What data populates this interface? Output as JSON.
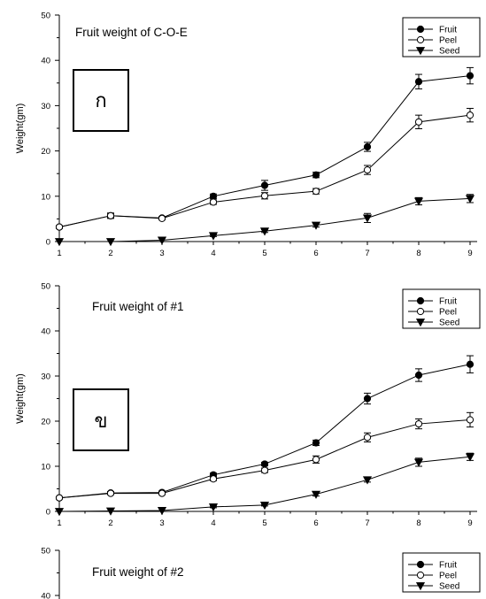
{
  "chart_data": [
    {
      "type": "line",
      "title": "Fruit weight of C-O-E",
      "box_label": "ก",
      "ylabel": "Weight(gm)",
      "xlabel": "",
      "x": [
        1,
        2,
        3,
        4,
        5,
        6,
        7,
        8,
        9
      ],
      "x_ticks": [
        "1",
        "2",
        "3",
        "4",
        "5",
        "6",
        "7",
        "8",
        "9"
      ],
      "ylim": [
        0,
        50
      ],
      "y_ticks": [
        "0",
        "10",
        "20",
        "30",
        "40",
        "50"
      ],
      "legend_position": "top-right",
      "series": [
        {
          "name": "Fruit",
          "marker": "filled-circle",
          "values": [
            3.2,
            5.7,
            5.2,
            10.0,
            12.4,
            14.7,
            20.9,
            35.3,
            36.6
          ],
          "errors": [
            0.3,
            0.4,
            0.3,
            0.5,
            1.1,
            0.6,
            1.0,
            1.6,
            1.8
          ]
        },
        {
          "name": "Peel",
          "marker": "open-circle",
          "values": [
            3.2,
            5.7,
            5.1,
            8.7,
            10.1,
            11.1,
            15.8,
            26.4,
            27.9
          ],
          "errors": [
            0.3,
            0.6,
            0.3,
            0.5,
            0.7,
            0.6,
            1.0,
            1.5,
            1.5
          ]
        },
        {
          "name": "Seed",
          "marker": "filled-triangle-down",
          "values": [
            0.0,
            0.0,
            0.3,
            1.3,
            2.3,
            3.6,
            5.2,
            8.9,
            9.5
          ],
          "errors": [
            0.05,
            0.05,
            0.1,
            0.2,
            0.3,
            0.4,
            1.0,
            0.8,
            0.9
          ]
        }
      ]
    },
    {
      "type": "line",
      "title": "Fruit weight of #1",
      "box_label": "ข",
      "ylabel": "Weight(gm)",
      "xlabel": "",
      "x": [
        1,
        2,
        3,
        4,
        5,
        6,
        7,
        8,
        9
      ],
      "x_ticks": [
        "1",
        "2",
        "3",
        "4",
        "5",
        "6",
        "7",
        "8",
        "9"
      ],
      "ylim": [
        0,
        50
      ],
      "y_ticks": [
        "0",
        "10",
        "20",
        "30",
        "40",
        "50"
      ],
      "legend_position": "top-right",
      "series": [
        {
          "name": "Fruit",
          "marker": "filled-circle",
          "values": [
            3.0,
            4.1,
            4.2,
            8.1,
            10.5,
            15.2,
            25.0,
            30.2,
            32.6
          ],
          "errors": [
            0.2,
            0.3,
            0.3,
            0.4,
            0.4,
            0.6,
            1.2,
            1.4,
            1.9
          ]
        },
        {
          "name": "Peel",
          "marker": "open-circle",
          "values": [
            3.0,
            4.0,
            4.0,
            7.2,
            9.1,
            11.5,
            16.4,
            19.4,
            20.3
          ],
          "errors": [
            0.2,
            0.3,
            0.3,
            0.4,
            0.5,
            0.8,
            1.0,
            1.1,
            1.6
          ]
        },
        {
          "name": "Seed",
          "marker": "filled-triangle-down",
          "values": [
            0.0,
            0.1,
            0.2,
            1.0,
            1.4,
            3.8,
            7.0,
            10.9,
            12.1
          ],
          "errors": [
            0.05,
            0.05,
            0.1,
            0.2,
            0.2,
            0.4,
            0.5,
            0.9,
            0.8
          ]
        }
      ]
    },
    {
      "type": "line",
      "title": "Fruit weight of #2",
      "ylabel": "",
      "xlabel": "",
      "ylim": [
        0,
        50
      ],
      "y_ticks": [
        "40",
        "50"
      ],
      "legend_position": "top-right",
      "series": [
        {
          "name": "Fruit",
          "marker": "filled-circle",
          "values": []
        },
        {
          "name": "Peel",
          "marker": "open-circle",
          "values": []
        },
        {
          "name": "Seed",
          "marker": "filled-triangle-down",
          "values": []
        }
      ]
    }
  ]
}
